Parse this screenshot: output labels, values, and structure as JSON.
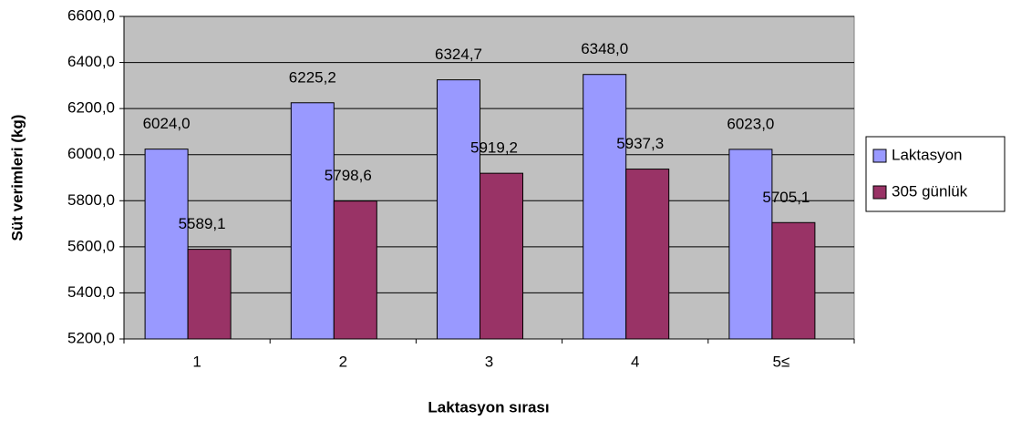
{
  "chart_data": {
    "type": "bar",
    "categories": [
      "1",
      "2",
      "3",
      "4",
      "5≤"
    ],
    "series": [
      {
        "name": "Laktasyon",
        "color": "#9999ff",
        "values": [
          6024.0,
          6225.2,
          6324.7,
          6348.0,
          6023.0
        ],
        "value_labels": [
          "6024,0",
          "6225,2",
          "6324,7",
          "6348,0",
          "6023,0"
        ]
      },
      {
        "name": "305 günlük",
        "color": "#993366",
        "values": [
          5589.1,
          5798.6,
          5919.2,
          5937.3,
          5705.1
        ],
        "value_labels": [
          "5589,1",
          "5798,6",
          "5919,2",
          "5937,3",
          "5705,1"
        ]
      }
    ],
    "xlabel": "Laktasyon sırası",
    "ylabel": "Süt verimleri (kg)",
    "ylim": [
      5200,
      6600
    ],
    "yticks": [
      {
        "value": 5200,
        "label": "5200,0"
      },
      {
        "value": 5400,
        "label": "5400,0"
      },
      {
        "value": 5600,
        "label": "5600,0"
      },
      {
        "value": 5800,
        "label": "5800,0"
      },
      {
        "value": 6000,
        "label": "6000,0"
      },
      {
        "value": 6200,
        "label": "6200,0"
      },
      {
        "value": 6400,
        "label": "6400,0"
      },
      {
        "value": 6600,
        "label": "6600,0"
      }
    ],
    "grid": true,
    "plot_background": "#c0c0c0",
    "legend": "right"
  }
}
